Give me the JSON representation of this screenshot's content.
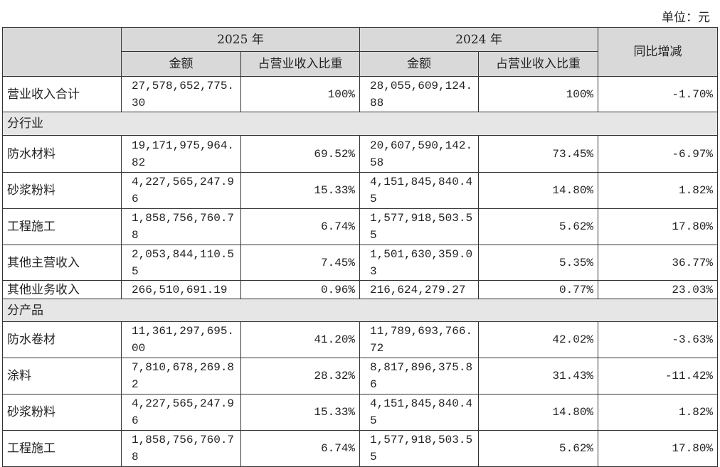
{
  "unit": "单位：元",
  "table": {
    "header_row1": [
      "2025 年",
      "2024 年",
      "同比增减"
    ],
    "header_row2": [
      "金额",
      "占营业收入比重",
      "金额",
      "占营业收入比重"
    ],
    "rows": [
      [
        "营业收入合计",
        "27,578,652,775.30",
        "100%",
        "28,055,609,124.88",
        "100%",
        "-1.70%"
      ],
      [
        "分行业"
      ],
      [
        "防水材料",
        "19,171,975,964.82",
        "69.52%",
        "20,607,590,142.58",
        "73.45%",
        "-6.97%"
      ],
      [
        "砂浆粉料",
        "4,227,565,247.96",
        "15.33%",
        "4,151,845,840.45",
        "14.80%",
        "1.82%"
      ],
      [
        "工程施工",
        "1,858,756,760.78",
        "6.74%",
        "1,577,918,503.55",
        "5.62%",
        "17.80%"
      ],
      [
        "其他主营收入",
        "2,053,844,110.55",
        "7.45%",
        "1,501,630,359.03",
        "5.35%",
        "36.77%"
      ],
      [
        "其他业务收入",
        "266,510,691.19",
        "0.96%",
        "216,624,279.27",
        "0.77%",
        "23.03%"
      ],
      [
        "分产品"
      ],
      [
        "防水卷材",
        "11,361,297,695.00",
        "41.20%",
        "11,789,693,766.72",
        "42.02%",
        "-3.63%"
      ],
      [
        "涂料",
        "7,810,678,269.82",
        "28.32%",
        "8,817,896,375.86",
        "31.43%",
        "-11.42%"
      ],
      [
        "砂浆粉料",
        "4,227,565,247.96",
        "15.33%",
        "4,151,845,840.45",
        "14.80%",
        "1.82%"
      ],
      [
        "工程施工",
        "1,858,756,760.78",
        "6.74%",
        "1,577,918,503.55",
        "5.62%",
        "17.80%"
      ]
    ]
  }
}
